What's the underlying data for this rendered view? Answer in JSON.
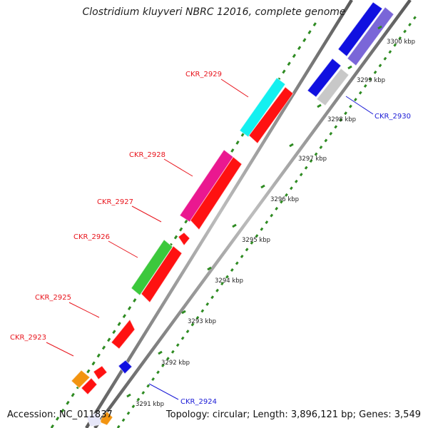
{
  "title": "Clostridium kluyveri NBRC 12016, complete genome",
  "footer": {
    "accession": "Accession: NC_011837",
    "summary": "Topology: circular; Length: 3,896,121 bp; Genes: 3,549"
  },
  "colors": {
    "backbone": "#8c8c8c",
    "tick": "#2e8b22",
    "label_forward": "#e8141c",
    "label_reverse": "#1a1ad6"
  },
  "ruler": [
    {
      "label": "3291 kbp"
    },
    {
      "label": "3292 kbp"
    },
    {
      "label": "3293 kbp"
    },
    {
      "label": "3294 kbp"
    },
    {
      "label": "3295 kbp"
    },
    {
      "label": "3296 kbp"
    },
    {
      "label": "3297 kbp"
    },
    {
      "label": "3298 kbp"
    },
    {
      "label": "3299 kbp"
    },
    {
      "label": "3300 kbp"
    }
  ],
  "genes": [
    {
      "label": "CKR_2923"
    },
    {
      "label": "CKR_2924"
    },
    {
      "label": "CKR_2925"
    },
    {
      "label": "CKR_2926"
    },
    {
      "label": "CKR_2927"
    },
    {
      "label": "CKR_2928"
    },
    {
      "label": "CKR_2929"
    },
    {
      "label": "CKR_2930"
    }
  ]
}
